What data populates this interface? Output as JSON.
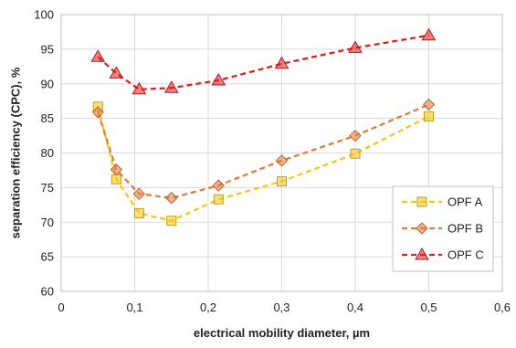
{
  "chart_data": {
    "type": "line",
    "xlabel": "electrical mobility diameter, µm",
    "ylabel": "separation efficiency (CPC), %",
    "xlim": [
      0,
      0.6
    ],
    "ylim": [
      60,
      100
    ],
    "x_ticks": [
      0,
      0.1,
      0.2,
      0.3,
      0.4,
      0.5,
      0.6
    ],
    "x_tick_labels": [
      "0",
      "0,1",
      "0,2",
      "0,3",
      "0,4",
      "0,5",
      "0,6"
    ],
    "y_ticks": [
      60,
      65,
      70,
      75,
      80,
      85,
      90,
      95,
      100
    ],
    "y_tick_labels": [
      "60",
      "65",
      "70",
      "75",
      "80",
      "85",
      "90",
      "95",
      "100"
    ],
    "grid": true,
    "legend_position": "bottom-right",
    "series": [
      {
        "name": "OPF A",
        "color": "#f5c518",
        "marker": "square",
        "line_style": "dashed",
        "x": [
          0.05,
          0.075,
          0.106,
          0.15,
          0.214,
          0.3,
          0.4,
          0.5
        ],
        "y": [
          86.7,
          76.2,
          71.3,
          70.2,
          73.3,
          75.9,
          79.9,
          85.3
        ]
      },
      {
        "name": "OPF B",
        "color": "#e07b39",
        "marker": "diamond",
        "line_style": "dashed",
        "x": [
          0.05,
          0.075,
          0.106,
          0.15,
          0.214,
          0.3,
          0.4,
          0.5
        ],
        "y": [
          85.9,
          77.6,
          74.1,
          73.5,
          75.3,
          78.9,
          82.5,
          87.0
        ]
      },
      {
        "name": "OPF C",
        "color": "#e01e1e",
        "marker": "triangle",
        "line_style": "dashed",
        "x": [
          0.05,
          0.075,
          0.106,
          0.15,
          0.214,
          0.3,
          0.4,
          0.5
        ],
        "y": [
          93.9,
          91.5,
          89.2,
          89.4,
          90.5,
          92.9,
          95.2,
          97.0
        ]
      }
    ]
  }
}
